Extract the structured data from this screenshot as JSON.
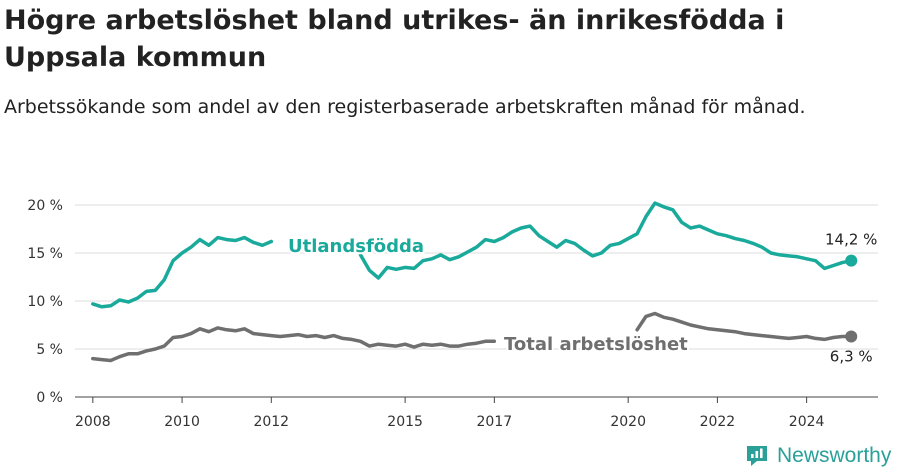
{
  "title": "Högre arbetslöshet bland utrikes- än inrikesfödda i Uppsala kommun",
  "subtitle": "Arbetssökande som andel av den registerbaserade arbetskraften månad för månad.",
  "brand": {
    "name": "Newsworthy",
    "color": "#2aa099"
  },
  "chart_data": {
    "type": "line",
    "title": "Högre arbetslöshet bland utrikes- än inrikesfödda i Uppsala kommun",
    "subtitle": "Arbetssökande som andel av den registerbaserade arbetskraften månad för månad.",
    "xlabel": "",
    "ylabel": "",
    "xlim": [
      2007.6,
      2025.6
    ],
    "ylim": [
      0,
      20
    ],
    "x_ticks": [
      2008,
      2010,
      2012,
      2015,
      2017,
      2020,
      2022,
      2024
    ],
    "y_ticks": [
      {
        "value": 0,
        "label": "0 %"
      },
      {
        "value": 5,
        "label": "5 %"
      },
      {
        "value": 10,
        "label": "10 %"
      },
      {
        "value": 15,
        "label": "15 %"
      },
      {
        "value": 20,
        "label": "20 %"
      }
    ],
    "grid": "horizontal",
    "legend": "inline labels",
    "series": [
      {
        "name": "Utlandsfödda",
        "color": "#1aaa9b",
        "end_label": "14,2 %",
        "segments": [
          [
            [
              2008.0,
              9.7
            ],
            [
              2008.2,
              9.4
            ],
            [
              2008.4,
              9.5
            ],
            [
              2008.6,
              10.1
            ],
            [
              2008.8,
              9.9
            ],
            [
              2009.0,
              10.3
            ],
            [
              2009.2,
              11.0
            ],
            [
              2009.4,
              11.1
            ],
            [
              2009.6,
              12.2
            ],
            [
              2009.8,
              14.2
            ],
            [
              2010.0,
              15.0
            ],
            [
              2010.2,
              15.6
            ],
            [
              2010.4,
              16.4
            ],
            [
              2010.6,
              15.8
            ],
            [
              2010.8,
              16.6
            ],
            [
              2011.0,
              16.4
            ],
            [
              2011.2,
              16.3
            ],
            [
              2011.4,
              16.6
            ],
            [
              2011.6,
              16.1
            ],
            [
              2011.8,
              15.8
            ],
            [
              2012.0,
              16.2
            ]
          ],
          [
            [
              2014.0,
              14.8
            ],
            [
              2014.2,
              13.2
            ],
            [
              2014.4,
              12.4
            ],
            [
              2014.6,
              13.5
            ],
            [
              2014.8,
              13.3
            ],
            [
              2015.0,
              13.5
            ],
            [
              2015.2,
              13.4
            ],
            [
              2015.4,
              14.2
            ],
            [
              2015.6,
              14.4
            ],
            [
              2015.8,
              14.8
            ],
            [
              2016.0,
              14.3
            ],
            [
              2016.2,
              14.6
            ],
            [
              2016.4,
              15.1
            ],
            [
              2016.6,
              15.6
            ],
            [
              2016.8,
              16.4
            ],
            [
              2017.0,
              16.2
            ],
            [
              2017.2,
              16.6
            ],
            [
              2017.4,
              17.2
            ],
            [
              2017.6,
              17.6
            ],
            [
              2017.8,
              17.8
            ],
            [
              2018.0,
              16.8
            ],
            [
              2018.2,
              16.2
            ],
            [
              2018.4,
              15.6
            ],
            [
              2018.6,
              16.3
            ],
            [
              2018.8,
              16.0
            ],
            [
              2019.0,
              15.3
            ],
            [
              2019.2,
              14.7
            ],
            [
              2019.4,
              15.0
            ],
            [
              2019.6,
              15.8
            ],
            [
              2019.8,
              16.0
            ],
            [
              2020.0,
              16.5
            ],
            [
              2020.2,
              17.0
            ],
            [
              2020.4,
              18.8
            ],
            [
              2020.6,
              20.2
            ],
            [
              2020.8,
              19.8
            ],
            [
              2021.0,
              19.5
            ],
            [
              2021.2,
              18.2
            ],
            [
              2021.4,
              17.6
            ],
            [
              2021.6,
              17.8
            ],
            [
              2021.8,
              17.4
            ],
            [
              2022.0,
              17.0
            ],
            [
              2022.2,
              16.8
            ],
            [
              2022.4,
              16.5
            ],
            [
              2022.6,
              16.3
            ],
            [
              2022.8,
              16.0
            ],
            [
              2023.0,
              15.6
            ],
            [
              2023.2,
              15.0
            ],
            [
              2023.4,
              14.8
            ],
            [
              2023.6,
              14.7
            ],
            [
              2023.8,
              14.6
            ],
            [
              2024.0,
              14.4
            ],
            [
              2024.2,
              14.2
            ],
            [
              2024.4,
              13.4
            ],
            [
              2024.6,
              13.7
            ],
            [
              2024.8,
              14.0
            ],
            [
              2025.0,
              14.2
            ]
          ]
        ]
      },
      {
        "name": "Total arbetslöshet",
        "color": "#6f6f6f",
        "end_label": "6,3 %",
        "segments": [
          [
            [
              2008.0,
              4.0
            ],
            [
              2008.2,
              3.9
            ],
            [
              2008.4,
              3.8
            ],
            [
              2008.6,
              4.2
            ],
            [
              2008.8,
              4.5
            ],
            [
              2009.0,
              4.5
            ],
            [
              2009.2,
              4.8
            ],
            [
              2009.4,
              5.0
            ],
            [
              2009.6,
              5.3
            ],
            [
              2009.8,
              6.2
            ],
            [
              2010.0,
              6.3
            ],
            [
              2010.2,
              6.6
            ],
            [
              2010.4,
              7.1
            ],
            [
              2010.6,
              6.8
            ],
            [
              2010.8,
              7.2
            ],
            [
              2011.0,
              7.0
            ],
            [
              2011.2,
              6.9
            ],
            [
              2011.4,
              7.1
            ],
            [
              2011.6,
              6.6
            ],
            [
              2011.8,
              6.5
            ],
            [
              2012.0,
              6.4
            ],
            [
              2012.2,
              6.3
            ],
            [
              2012.4,
              6.4
            ],
            [
              2012.6,
              6.5
            ],
            [
              2012.8,
              6.3
            ],
            [
              2013.0,
              6.4
            ],
            [
              2013.2,
              6.2
            ],
            [
              2013.4,
              6.4
            ],
            [
              2013.6,
              6.1
            ],
            [
              2013.8,
              6.0
            ],
            [
              2014.0,
              5.8
            ],
            [
              2014.2,
              5.3
            ],
            [
              2014.4,
              5.5
            ],
            [
              2014.6,
              5.4
            ],
            [
              2014.8,
              5.3
            ],
            [
              2015.0,
              5.5
            ],
            [
              2015.2,
              5.2
            ],
            [
              2015.4,
              5.5
            ],
            [
              2015.6,
              5.4
            ],
            [
              2015.8,
              5.5
            ],
            [
              2016.0,
              5.3
            ],
            [
              2016.2,
              5.3
            ],
            [
              2016.4,
              5.5
            ],
            [
              2016.6,
              5.6
            ],
            [
              2016.8,
              5.8
            ],
            [
              2017.0,
              5.8
            ]
          ],
          [
            [
              2020.2,
              7.0
            ],
            [
              2020.4,
              8.4
            ],
            [
              2020.6,
              8.7
            ],
            [
              2020.8,
              8.3
            ],
            [
              2021.0,
              8.1
            ],
            [
              2021.2,
              7.8
            ],
            [
              2021.4,
              7.5
            ],
            [
              2021.6,
              7.3
            ],
            [
              2021.8,
              7.1
            ],
            [
              2022.0,
              7.0
            ],
            [
              2022.2,
              6.9
            ],
            [
              2022.4,
              6.8
            ],
            [
              2022.6,
              6.6
            ],
            [
              2022.8,
              6.5
            ],
            [
              2023.0,
              6.4
            ],
            [
              2023.2,
              6.3
            ],
            [
              2023.4,
              6.2
            ],
            [
              2023.6,
              6.1
            ],
            [
              2023.8,
              6.2
            ],
            [
              2024.0,
              6.3
            ],
            [
              2024.2,
              6.1
            ],
            [
              2024.4,
              6.0
            ],
            [
              2024.6,
              6.2
            ],
            [
              2024.8,
              6.3
            ],
            [
              2025.0,
              6.3
            ]
          ]
        ]
      }
    ]
  }
}
